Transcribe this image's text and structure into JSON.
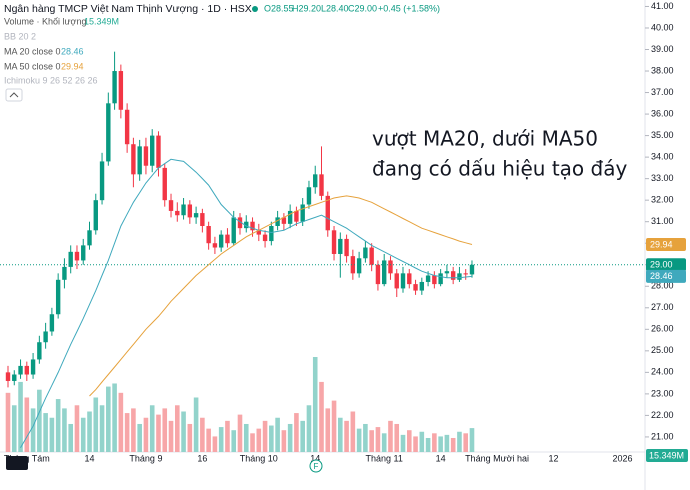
{
  "header": {
    "symbol": "Ngân hàng TMCP Việt Nam Thịnh Vượng · 1D · HSX",
    "ohlc": [
      "O28.55",
      "H29.20",
      "L28.40",
      "C29.00",
      "+0.45 (+1.58%)"
    ]
  },
  "indicators": {
    "bb": "BB 20 2",
    "ichimoku": "Ichimoku 9 26 52 26 26"
  },
  "chart_data": {
    "type": "candlestick",
    "categories": [
      null,
      null,
      null,
      "Tháng Tám",
      null,
      null,
      null,
      null,
      null,
      null,
      null,
      null,
      null,
      "14",
      null,
      null,
      null,
      null,
      null,
      null,
      null,
      null,
      "Tháng 9",
      null,
      null,
      null,
      null,
      null,
      null,
      null,
      null,
      "16",
      null,
      null,
      null,
      null,
      null,
      null,
      null,
      null,
      "Tháng 10",
      null,
      null,
      null,
      null,
      null,
      null,
      null,
      null,
      "14",
      null,
      null,
      null,
      null,
      null,
      null,
      null,
      null,
      null,
      null,
      "Tháng 11",
      null,
      null,
      null,
      null,
      null,
      null,
      null,
      null,
      "14",
      null,
      null,
      null,
      null,
      null,
      null,
      null,
      null,
      "Tháng Mười hai",
      null,
      null,
      null,
      null,
      null,
      null,
      null,
      null,
      "12",
      null,
      null,
      null,
      null,
      null,
      null,
      null,
      null,
      null,
      null,
      "2026",
      null
    ],
    "open": [
      24.0,
      23.6,
      23.9,
      24.3,
      23.9,
      24.6,
      25.4,
      25.9,
      26.7,
      28.3,
      28.9,
      29.6,
      29.2,
      29.9,
      30.6,
      32.0,
      33.8,
      36.5,
      38.0,
      36.2,
      34.6,
      33.2,
      34.5,
      33.6,
      35.0,
      33.5,
      32.0,
      31.5,
      31.3,
      31.8,
      31.2,
      31.4,
      30.8,
      30.0,
      29.8,
      30.4,
      30.0,
      31.2,
      30.7,
      31.0,
      30.6,
      30.4,
      30.1,
      30.8,
      31.2,
      30.9,
      31.5,
      31.0,
      31.8,
      32.6,
      33.2,
      32.2,
      30.6,
      29.5,
      30.2,
      29.4,
      28.6,
      29.3,
      29.8,
      29.0,
      28.1,
      29.2,
      28.6,
      27.9,
      28.6,
      28.1,
      27.8,
      28.2,
      28.5,
      28.1,
      28.6,
      28.7,
      28.3,
      28.6,
      28.55,
      null,
      null,
      null,
      null,
      null,
      null,
      null,
      null,
      null,
      null,
      null,
      null,
      null,
      null,
      null,
      null,
      null,
      null,
      null,
      null,
      null,
      null,
      null,
      null,
      null
    ],
    "high": [
      24.3,
      24.1,
      24.6,
      24.5,
      24.9,
      25.7,
      26.3,
      27.0,
      28.6,
      29.3,
      29.9,
      29.9,
      30.2,
      31.0,
      32.3,
      34.2,
      37.0,
      38.9,
      38.3,
      36.5,
      34.9,
      34.8,
      34.9,
      35.3,
      35.2,
      33.7,
      32.3,
      31.9,
      32.1,
      32.0,
      31.7,
      31.6,
      31.0,
      30.3,
      30.6,
      30.7,
      31.5,
      31.4,
      31.3,
      31.2,
      30.9,
      30.6,
      31.0,
      31.5,
      31.4,
      31.8,
      31.7,
      32.1,
      32.9,
      33.6,
      34.5,
      32.4,
      30.8,
      30.5,
      30.4,
      29.7,
      29.6,
      30.1,
      30.0,
      29.2,
      29.5,
      29.4,
      28.8,
      28.9,
      28.8,
      28.3,
      28.4,
      28.7,
      28.7,
      28.8,
      29.0,
      28.9,
      28.9,
      28.8,
      29.2,
      null,
      null,
      null,
      null,
      null,
      null,
      null,
      null,
      null,
      null,
      null,
      null,
      null,
      null,
      null,
      null,
      null,
      null,
      null,
      null,
      null,
      null,
      null,
      null,
      null
    ],
    "low": [
      23.3,
      23.4,
      23.7,
      23.6,
      23.7,
      24.4,
      25.1,
      25.7,
      26.5,
      27.9,
      28.6,
      28.8,
      29.0,
      29.7,
      30.4,
      31.8,
      33.6,
      36.2,
      35.8,
      34.2,
      32.6,
      32.9,
      33.2,
      33.3,
      33.1,
      31.7,
      31.2,
      31.0,
      31.1,
      30.9,
      30.9,
      30.5,
      29.7,
      29.5,
      29.6,
      29.8,
      29.9,
      30.4,
      30.5,
      30.3,
      30.1,
      29.8,
      29.9,
      30.6,
      30.6,
      30.7,
      30.8,
      30.8,
      31.6,
      32.3,
      32.0,
      30.3,
      29.2,
      28.4,
      29.1,
      28.3,
      28.4,
      29.1,
      28.7,
      27.8,
      28.0,
      28.3,
      27.5,
      27.7,
      27.9,
      27.6,
      27.6,
      28.0,
      27.9,
      28.0,
      28.4,
      28.1,
      28.2,
      28.3,
      28.4,
      null,
      null,
      null,
      null,
      null,
      null,
      null,
      null,
      null,
      null,
      null,
      null,
      null,
      null,
      null,
      null,
      null,
      null,
      null,
      null,
      null,
      null,
      null,
      null,
      null
    ],
    "close": [
      23.6,
      23.9,
      24.3,
      23.9,
      24.6,
      25.4,
      25.9,
      26.7,
      28.3,
      28.9,
      29.6,
      29.2,
      29.9,
      30.6,
      32.0,
      33.8,
      36.5,
      38.0,
      36.2,
      34.6,
      33.2,
      34.5,
      33.6,
      35.0,
      33.5,
      32.0,
      31.5,
      31.3,
      31.8,
      31.2,
      31.4,
      30.8,
      30.0,
      29.8,
      30.4,
      30.0,
      31.2,
      30.7,
      31.0,
      30.6,
      30.4,
      30.1,
      30.8,
      31.2,
      30.9,
      31.5,
      31.0,
      31.8,
      32.6,
      33.2,
      32.2,
      30.6,
      29.5,
      30.2,
      29.4,
      28.6,
      29.3,
      29.8,
      29.0,
      28.1,
      29.2,
      28.6,
      27.9,
      28.6,
      28.1,
      27.8,
      28.2,
      28.5,
      28.1,
      28.6,
      28.7,
      28.3,
      28.6,
      28.55,
      29.0,
      null,
      null,
      null,
      null,
      null,
      null,
      null,
      null,
      null,
      null,
      null,
      null,
      null,
      null,
      null,
      null,
      null,
      null,
      null,
      null,
      null,
      null,
      null,
      null,
      null
    ],
    "close_labels": [
      null,
      null,
      null,
      null,
      null,
      null,
      null,
      null,
      null,
      null,
      null,
      null,
      null,
      null,
      null,
      null,
      null,
      null,
      null,
      null,
      null,
      null,
      null,
      null,
      null,
      null,
      null,
      null,
      null,
      null,
      null,
      null,
      null,
      null,
      null,
      null,
      null,
      null,
      null,
      null,
      null,
      null,
      null,
      null,
      null,
      null,
      null,
      null,
      null,
      null,
      null,
      null,
      null,
      null,
      null,
      null,
      null,
      null,
      null,
      null,
      null,
      null,
      null,
      null,
      null,
      null,
      null,
      null,
      null,
      null,
      null,
      null,
      null,
      null,
      "29.00",
      null,
      null,
      null,
      null,
      null,
      null,
      null,
      null,
      null,
      null,
      null,
      null,
      null,
      null,
      null,
      null,
      null,
      null,
      null,
      null,
      null,
      null,
      null,
      null,
      null
    ],
    "close_color": "#089981",
    "up_color": "#089981",
    "down_color": "#f23645",
    "series": [
      {
        "name": "MA 20 close 0",
        "color": "#3fa9bd",
        "values": [
          null,
          null,
          20.5,
          21.0,
          21.5,
          22.15,
          22.8,
          23.4,
          24.0,
          24.65,
          25.3,
          25.9,
          26.5,
          27.15,
          27.8,
          28.5,
          29.2,
          30.0,
          30.8,
          31.35,
          31.9,
          32.35,
          32.8,
          33.15,
          33.5,
          33.7,
          33.9,
          33.85,
          33.8,
          33.55,
          33.3,
          33.0,
          32.7,
          32.25,
          31.8,
          31.5,
          31.2,
          31.0,
          30.8,
          30.7,
          30.6,
          30.55,
          30.5,
          30.55,
          30.6,
          30.75,
          30.9,
          31.0,
          31.1,
          31.2,
          31.3,
          31.15,
          31.0,
          30.85,
          30.7,
          30.5,
          30.3,
          30.1,
          29.9,
          29.75,
          29.6,
          29.45,
          29.3,
          29.15,
          29.0,
          28.85,
          28.7,
          28.6,
          28.5,
          28.45,
          28.4,
          28.4,
          28.4,
          28.43,
          28.46,
          null,
          null,
          null,
          null,
          null,
          null,
          null,
          null,
          null,
          null,
          null,
          null,
          null,
          null,
          null,
          null,
          null,
          null,
          null,
          null,
          null,
          null,
          null,
          null,
          null
        ],
        "value_labels": [
          null,
          null,
          null,
          null,
          null,
          null,
          null,
          null,
          null,
          null,
          null,
          null,
          null,
          null,
          null,
          null,
          null,
          null,
          null,
          null,
          null,
          null,
          null,
          null,
          null,
          null,
          null,
          null,
          null,
          null,
          null,
          null,
          null,
          null,
          null,
          null,
          null,
          null,
          null,
          null,
          null,
          null,
          null,
          null,
          null,
          null,
          null,
          null,
          null,
          null,
          null,
          null,
          null,
          null,
          null,
          null,
          null,
          null,
          null,
          null,
          null,
          null,
          null,
          null,
          null,
          null,
          null,
          null,
          null,
          null,
          null,
          null,
          null,
          null,
          "28.46",
          null,
          null,
          null,
          null,
          null,
          null,
          null,
          null,
          null,
          null,
          null,
          null,
          null,
          null,
          null,
          null,
          null,
          null,
          null,
          null,
          null,
          null,
          null,
          null,
          null
        ]
      },
      {
        "name": "MA 50 close 0",
        "color": "#e6a23c",
        "values": [
          null,
          null,
          null,
          null,
          null,
          null,
          null,
          null,
          null,
          null,
          null,
          null,
          null,
          22.9,
          23.2,
          23.55,
          23.9,
          24.25,
          24.6,
          24.95,
          25.3,
          25.65,
          26.0,
          26.3,
          26.6,
          26.95,
          27.3,
          27.6,
          27.9,
          28.2,
          28.5,
          28.75,
          29.0,
          29.25,
          29.5,
          29.7,
          29.9,
          30.1,
          30.3,
          30.45,
          30.6,
          30.75,
          30.9,
          31.05,
          31.2,
          31.35,
          31.5,
          31.6,
          31.7,
          31.8,
          31.9,
          32.0,
          32.1,
          32.15,
          32.2,
          32.15,
          32.1,
          32.0,
          31.9,
          31.75,
          31.6,
          31.45,
          31.3,
          31.15,
          31.0,
          30.85,
          30.7,
          30.6,
          30.5,
          30.4,
          30.3,
          30.2,
          30.1,
          30.02,
          29.94,
          null,
          null,
          null,
          null,
          null,
          null,
          null,
          null,
          null,
          null,
          null,
          null,
          null,
          null,
          null,
          null,
          null,
          null,
          null,
          null,
          null,
          null,
          null,
          null,
          null
        ],
        "value_labels": [
          null,
          null,
          null,
          null,
          null,
          null,
          null,
          null,
          null,
          null,
          null,
          null,
          null,
          null,
          null,
          null,
          null,
          null,
          null,
          null,
          null,
          null,
          null,
          null,
          null,
          null,
          null,
          null,
          null,
          null,
          null,
          null,
          null,
          null,
          null,
          null,
          null,
          null,
          null,
          null,
          null,
          null,
          null,
          null,
          null,
          null,
          null,
          null,
          null,
          null,
          null,
          null,
          null,
          null,
          null,
          null,
          null,
          null,
          null,
          null,
          null,
          null,
          null,
          null,
          null,
          null,
          null,
          null,
          null,
          null,
          null,
          null,
          null,
          null,
          "29.94",
          null,
          null,
          null,
          null,
          null,
          null,
          null,
          null,
          null,
          null,
          null,
          null,
          null,
          null,
          null,
          null,
          null,
          null,
          null,
          null,
          null,
          null,
          null,
          null,
          null
        ]
      }
    ],
    "volume": {
      "name": "Volume · Khối lượng",
      "up_color": "#92d3cb",
      "down_color": "#f7a6a8",
      "values": [
        38,
        30,
        45,
        35,
        28,
        40,
        25,
        22,
        34,
        28,
        18,
        30,
        22,
        26,
        35,
        30,
        42,
        44,
        38,
        25,
        28,
        18,
        22,
        30,
        24,
        28,
        20,
        30,
        26,
        18,
        35,
        22,
        15,
        10,
        16,
        20,
        14,
        24,
        18,
        12,
        15,
        20,
        17,
        22,
        14,
        18,
        25,
        20,
        30,
        61,
        45,
        28,
        33,
        22,
        20,
        26,
        15,
        18,
        14,
        16,
        12,
        20,
        18,
        11,
        14,
        10,
        13,
        9,
        12,
        10,
        11,
        9,
        13,
        12,
        15.349,
        null,
        null,
        null,
        null,
        null,
        null,
        null,
        null,
        null,
        null,
        null,
        null,
        null,
        null,
        null,
        null,
        null,
        null,
        null,
        null,
        null,
        null,
        null,
        null,
        null
      ],
      "value_labels": [
        null,
        null,
        null,
        null,
        null,
        null,
        null,
        null,
        null,
        null,
        null,
        null,
        null,
        null,
        null,
        null,
        null,
        null,
        null,
        null,
        null,
        null,
        null,
        null,
        null,
        null,
        null,
        null,
        null,
        null,
        null,
        null,
        null,
        null,
        null,
        null,
        null,
        null,
        null,
        null,
        null,
        null,
        null,
        null,
        null,
        null,
        null,
        null,
        null,
        null,
        null,
        null,
        null,
        null,
        null,
        null,
        null,
        null,
        null,
        null,
        null,
        null,
        null,
        null,
        null,
        null,
        null,
        null,
        null,
        null,
        null,
        null,
        null,
        null,
        "15.349M",
        null,
        null,
        null,
        null,
        null,
        null,
        null,
        null,
        null,
        null,
        null,
        null,
        null,
        null,
        null,
        null,
        null,
        null,
        null,
        null,
        null,
        null,
        null,
        null,
        null
      ]
    },
    "ylim": [
      20.3,
      41.3
    ],
    "yticks": [
      {
        "value": 21,
        "label": "21.00"
      },
      {
        "value": 22,
        "label": "22.00"
      },
      {
        "value": 23,
        "label": "23.00"
      },
      {
        "value": 24,
        "label": "24.00"
      },
      {
        "value": 25,
        "label": "25.00"
      },
      {
        "value": 26,
        "label": "26.00"
      },
      {
        "value": 27,
        "label": "27.00"
      },
      {
        "value": 28,
        "label": "28.00"
      },
      {
        "value": 29,
        "label": "29.00"
      },
      {
        "value": 30,
        "label": "30.00"
      },
      {
        "value": 31,
        "label": "31.00"
      },
      {
        "value": 32,
        "label": "32.00"
      },
      {
        "value": 33,
        "label": "33.00"
      },
      {
        "value": 34,
        "label": "34.00"
      },
      {
        "value": 35,
        "label": "35.00"
      },
      {
        "value": 36,
        "label": "36.00"
      },
      {
        "value": 37,
        "label": "37.00"
      },
      {
        "value": 38,
        "label": "38.00"
      },
      {
        "value": 39,
        "label": "39.00"
      },
      {
        "value": 40,
        "label": "40.00"
      },
      {
        "value": 41,
        "label": "41.00"
      }
    ],
    "annotations": [
      "vượt MA20, dưới MA50",
      "đang có dấu hiệu tạo đáy"
    ],
    "annotation_color": "#6a2fc8",
    "event_label": "F"
  }
}
